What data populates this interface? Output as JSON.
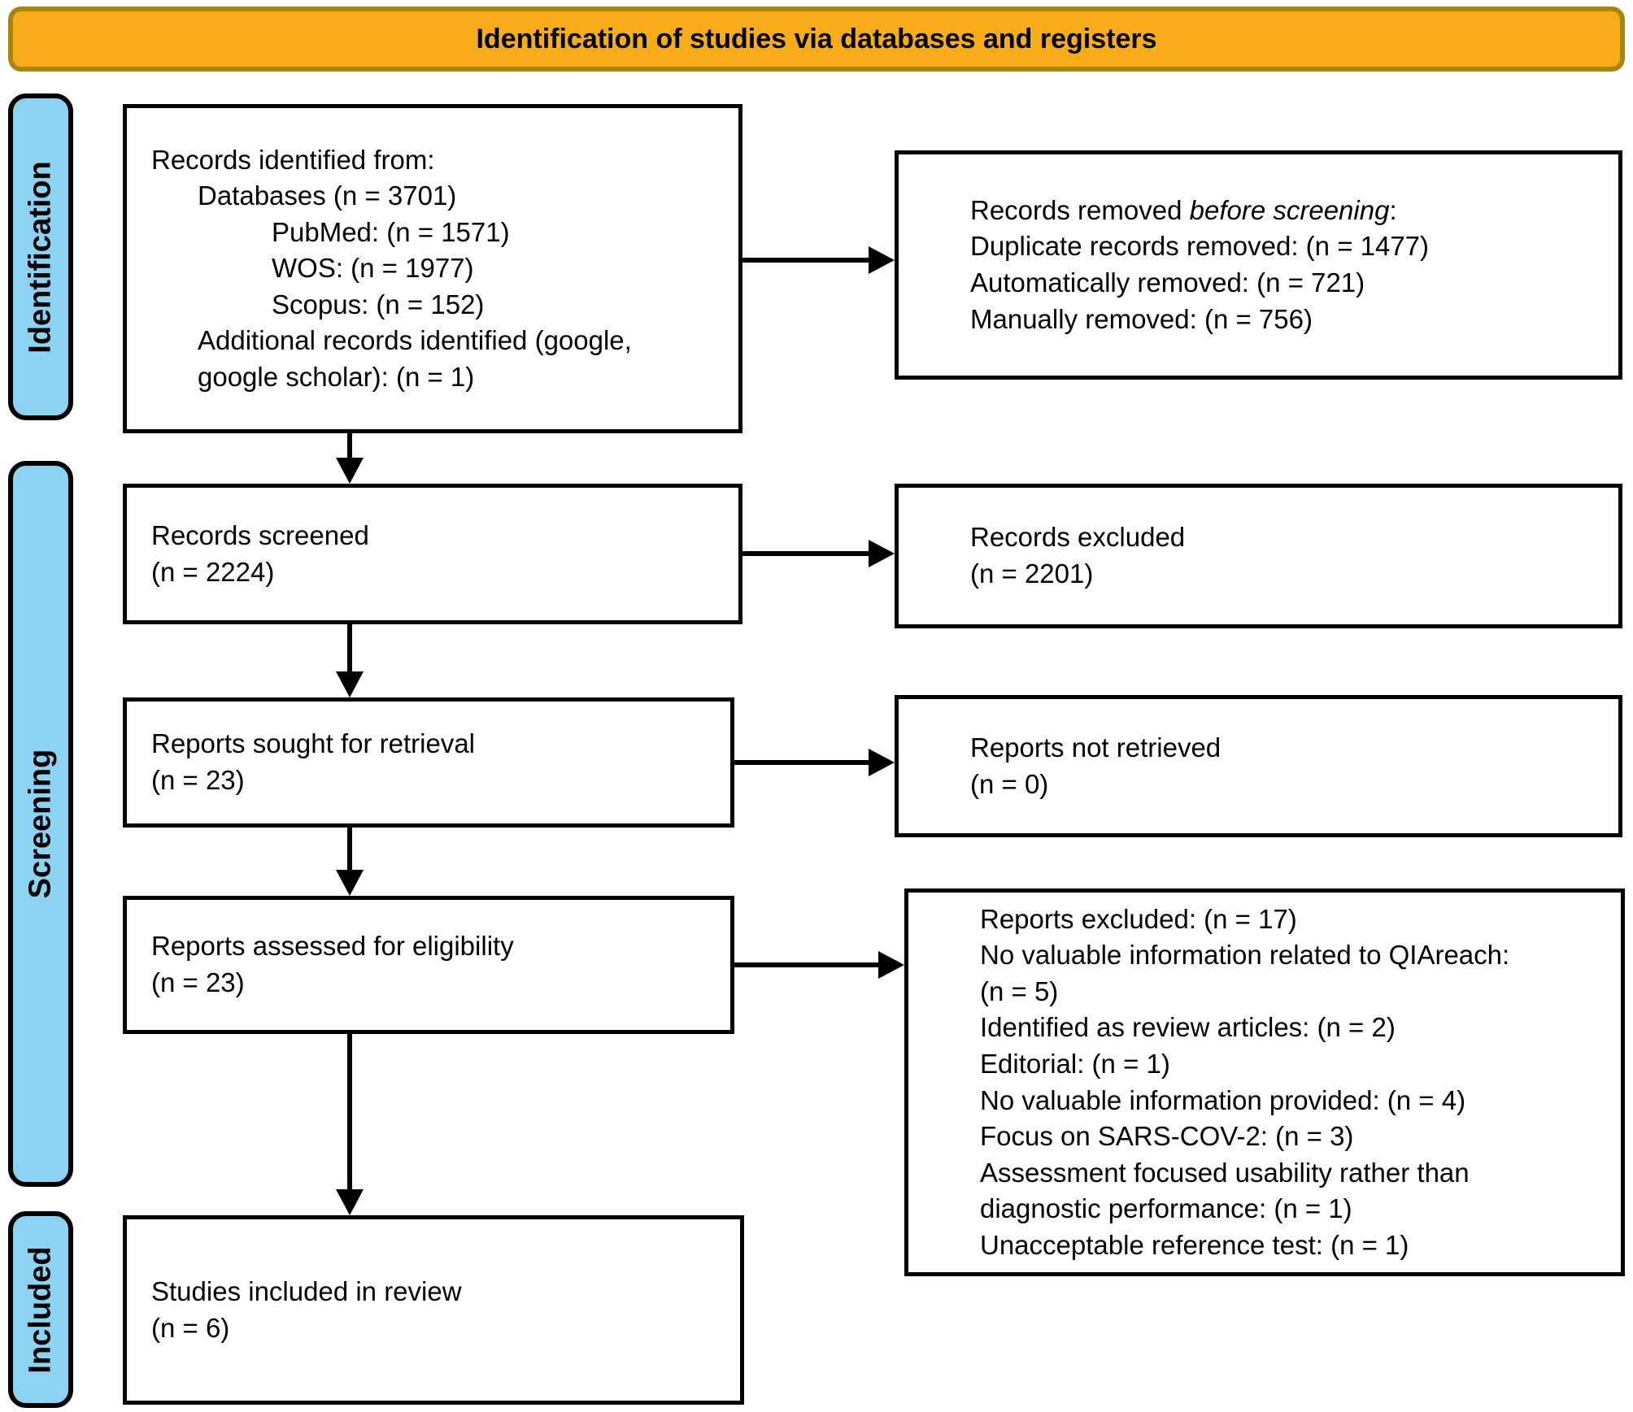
{
  "banner": {
    "title": "Identification of studies via databases and registers"
  },
  "colors": {
    "banner_fill": "#F8AC1A",
    "banner_border": "#A8860D",
    "stage_fill": "#8CD2F2",
    "ink": "#000000"
  },
  "stages": [
    {
      "label": "Identification"
    },
    {
      "label": "Screening"
    },
    {
      "label": "Included"
    }
  ],
  "boxes": {
    "identified": {
      "lines": [
        {
          "text": "Records identified from:",
          "indent": 0
        },
        {
          "text": "Databases (n = 3701)",
          "indent": 1
        },
        {
          "text": "PubMed: (n = 1571)",
          "indent": 2
        },
        {
          "text": "WOS: (n = 1977)",
          "indent": 2
        },
        {
          "text": "Scopus: (n = 152)",
          "indent": 2
        },
        {
          "text": "Additional records identified (google,",
          "indent": 1
        },
        {
          "text": "google scholar): (n = 1)",
          "indent": 1
        }
      ]
    },
    "removed": {
      "lines": [
        {
          "segments": [
            {
              "text": "Records removed "
            },
            {
              "text": "before screening",
              "italic": true
            },
            {
              "text": ":"
            }
          ],
          "indent": 0
        },
        {
          "text": "Duplicate records removed: (n = 1477)",
          "indent": 0
        },
        {
          "text": "Automatically removed: (n = 721)",
          "indent": 0
        },
        {
          "text": "Manually removed: (n = 756)",
          "indent": 0
        }
      ]
    },
    "screened": {
      "lines": [
        {
          "text": "Records screened",
          "indent": 0
        },
        {
          "text": "(n = 2224)",
          "indent": 0
        }
      ]
    },
    "excluded": {
      "lines": [
        {
          "text": "Records excluded",
          "indent": 0
        },
        {
          "text": "(n = 2201)",
          "indent": 0
        }
      ]
    },
    "sought": {
      "lines": [
        {
          "text": "Reports sought for retrieval",
          "indent": 0
        },
        {
          "text": "(n = 23)",
          "indent": 0
        }
      ]
    },
    "not_retrieved": {
      "lines": [
        {
          "text": "Reports not retrieved",
          "indent": 0
        },
        {
          "text": "(n = 0)",
          "indent": 0
        }
      ]
    },
    "assessed": {
      "lines": [
        {
          "text": "Reports assessed for eligibility",
          "indent": 0
        },
        {
          "text": "(n = 23)",
          "indent": 0
        }
      ]
    },
    "reports_excluded": {
      "lines": [
        {
          "text": "Reports excluded: (n = 17)",
          "indent": 0
        },
        {
          "text": "No valuable information related to QIAreach:",
          "indent": 0
        },
        {
          "text": "(n = 5)",
          "indent": 0
        },
        {
          "text": "Identified as review articles: (n = 2)",
          "indent": 0
        },
        {
          "text": "Editorial: (n = 1)",
          "indent": 0
        },
        {
          "text": "No valuable information provided: (n = 4)",
          "indent": 0
        },
        {
          "text": "Focus on SARS-COV-2: (n = 3)",
          "indent": 0
        },
        {
          "text": "Assessment focused usability rather than",
          "indent": 0
        },
        {
          "text": "diagnostic performance: (n = 1)",
          "indent": 0
        },
        {
          "text": "Unacceptable reference test: (n = 1)",
          "indent": 0
        }
      ]
    },
    "included": {
      "lines": [
        {
          "text": "Studies included in review",
          "indent": 0
        },
        {
          "text": "(n = 6)",
          "indent": 0
        }
      ]
    }
  }
}
